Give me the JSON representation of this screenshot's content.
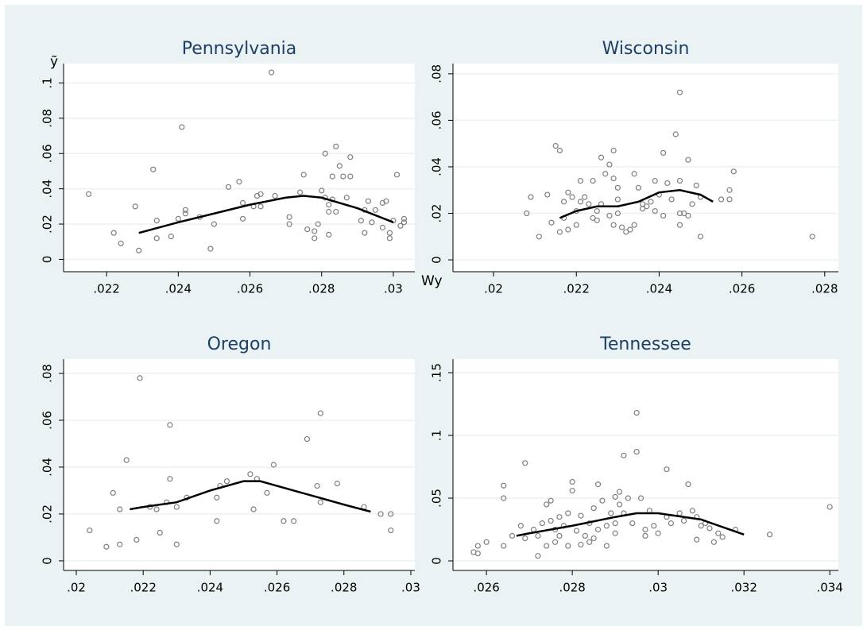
{
  "chart_data": [
    {
      "type": "scatter",
      "title": "Pennsylvania",
      "y_label": "ỹ",
      "x_label": "Wy",
      "xlim": [
        0.0208,
        0.0306
      ],
      "ylim": [
        -0.007,
        0.111
      ],
      "grid": true,
      "xticks": [
        {
          "value": 0.022,
          "label": ".022"
        },
        {
          "value": 0.024,
          "label": ".024"
        },
        {
          "value": 0.026,
          "label": ".026"
        },
        {
          "value": 0.028,
          "label": ".028"
        },
        {
          "value": 0.03,
          "label": ".03"
        }
      ],
      "yticks": [
        0,
        {
          "value": 0.02,
          "label": ".02"
        },
        {
          "value": 0.04,
          "label": ".04"
        },
        {
          "value": 0.06,
          "label": ".06"
        },
        {
          "value": 0.08,
          "label": ".08"
        },
        {
          "value": 0.1,
          "label": ".1"
        }
      ],
      "series": [
        {
          "type": "scatter",
          "color": "#7f7f7f",
          "x": [
            0.0215,
            0.0222,
            0.0224,
            0.0228,
            0.0229,
            0.0233,
            0.0234,
            0.0234,
            0.0238,
            0.024,
            0.0241,
            0.0242,
            0.0242,
            0.0246,
            0.0249,
            0.025,
            0.0254,
            0.0257,
            0.0258,
            0.0258,
            0.0261,
            0.0262,
            0.0263,
            0.0263,
            0.0266,
            0.0267,
            0.0271,
            0.0271,
            0.0274,
            0.0275,
            0.0276,
            0.0278,
            0.0278,
            0.0279,
            0.028,
            0.0281,
            0.0281,
            0.0282,
            0.0282,
            0.0282,
            0.0283,
            0.0283,
            0.0284,
            0.0284,
            0.0285,
            0.0286,
            0.0287,
            0.0288,
            0.0288,
            0.0291,
            0.0292,
            0.0293,
            0.0294,
            0.0297,
            0.0297,
            0.0298,
            0.0299,
            0.0299,
            0.03,
            0.0301,
            0.0302,
            0.0303,
            0.0303,
            0.0295,
            0.0292
          ],
          "values": [
            0.037,
            0.015,
            0.009,
            0.03,
            0.005,
            0.051,
            0.022,
            0.012,
            0.013,
            0.023,
            0.075,
            0.026,
            0.028,
            0.024,
            0.006,
            0.02,
            0.041,
            0.044,
            0.032,
            0.023,
            0.03,
            0.036,
            0.037,
            0.03,
            0.106,
            0.036,
            0.024,
            0.02,
            0.038,
            0.048,
            0.017,
            0.012,
            0.016,
            0.02,
            0.039,
            0.035,
            0.06,
            0.031,
            0.027,
            0.014,
            0.034,
            0.047,
            0.064,
            0.027,
            0.053,
            0.047,
            0.035,
            0.047,
            0.058,
            0.022,
            0.015,
            0.033,
            0.021,
            0.032,
            0.018,
            0.033,
            0.012,
            0.015,
            0.022,
            0.048,
            0.019,
            0.021,
            0.023,
            0.028,
            0.028
          ]
        },
        {
          "type": "line",
          "color": "#000000",
          "x": [
            0.0229,
            0.024,
            0.025,
            0.026,
            0.027,
            0.0275,
            0.028,
            0.029,
            0.03
          ],
          "values": [
            0.015,
            0.021,
            0.026,
            0.031,
            0.035,
            0.036,
            0.035,
            0.029,
            0.021
          ]
        }
      ]
    },
    {
      "type": "scatter",
      "title": "Wisconsin",
      "xlim": [
        0.01902,
        0.02833
      ],
      "ylim": [
        -0.0051,
        0.0844
      ],
      "grid": true,
      "xticks": [
        {
          "value": 0.02,
          "label": ".02"
        },
        {
          "value": 0.022,
          "label": ".022"
        },
        {
          "value": 0.024,
          "label": ".024"
        },
        {
          "value": 0.026,
          "label": ".026"
        },
        {
          "value": 0.028,
          "label": ".028"
        }
      ],
      "yticks": [
        0,
        {
          "value": 0.02,
          "label": ".02"
        },
        {
          "value": 0.04,
          "label": ".04"
        },
        {
          "value": 0.06,
          "label": ".06"
        },
        {
          "value": 0.08,
          "label": ".08"
        }
      ],
      "series": [
        {
          "type": "scatter",
          "color": "#7f7f7f",
          "x": [
            0.0208,
            0.0209,
            0.0211,
            0.0213,
            0.0214,
            0.0215,
            0.0216,
            0.0216,
            0.0217,
            0.0217,
            0.0218,
            0.0218,
            0.0219,
            0.022,
            0.022,
            0.0221,
            0.0221,
            0.0222,
            0.0223,
            0.0224,
            0.0224,
            0.0225,
            0.0225,
            0.0226,
            0.0226,
            0.0227,
            0.0228,
            0.0228,
            0.0229,
            0.0229,
            0.0229,
            0.023,
            0.023,
            0.023,
            0.0231,
            0.0232,
            0.0233,
            0.0234,
            0.0234,
            0.0235,
            0.0236,
            0.0236,
            0.0237,
            0.0238,
            0.0239,
            0.0239,
            0.024,
            0.0241,
            0.0241,
            0.0242,
            0.0243,
            0.0244,
            0.0245,
            0.0245,
            0.0245,
            0.0245,
            0.0246,
            0.0247,
            0.0247,
            0.0248,
            0.0249,
            0.025,
            0.025,
            0.0255,
            0.0257,
            0.0257,
            0.0258,
            0.0277
          ],
          "values": [
            0.02,
            0.027,
            0.01,
            0.028,
            0.016,
            0.049,
            0.012,
            0.047,
            0.025,
            0.018,
            0.013,
            0.029,
            0.027,
            0.015,
            0.021,
            0.025,
            0.034,
            0.027,
            0.024,
            0.034,
            0.018,
            0.021,
            0.017,
            0.044,
            0.024,
            0.037,
            0.019,
            0.041,
            0.047,
            0.035,
            0.015,
            0.02,
            0.026,
            0.031,
            0.014,
            0.012,
            0.013,
            0.037,
            0.015,
            0.031,
            0.024,
            0.022,
            0.023,
            0.025,
            0.034,
            0.021,
            0.028,
            0.046,
            0.019,
            0.033,
            0.026,
            0.054,
            0.072,
            0.034,
            0.02,
            0.015,
            0.02,
            0.043,
            0.019,
            0.024,
            0.032,
            0.027,
            0.01,
            0.026,
            0.03,
            0.026,
            0.038,
            0.01
          ]
        },
        {
          "type": "line",
          "color": "#000000",
          "x": [
            0.0216,
            0.022,
            0.0225,
            0.023,
            0.0235,
            0.024,
            0.0245,
            0.025,
            0.0253
          ],
          "values": [
            0.018,
            0.021,
            0.023,
            0.023,
            0.025,
            0.029,
            0.03,
            0.028,
            0.025
          ]
        }
      ]
    },
    {
      "type": "scatter",
      "title": "Oregon",
      "xlim": [
        0.01962,
        0.03012
      ],
      "ylim": [
        -0.0041,
        0.0861
      ],
      "grid": true,
      "xticks": [
        {
          "value": 0.02,
          "label": ".02"
        },
        {
          "value": 0.022,
          "label": ".022"
        },
        {
          "value": 0.024,
          "label": ".024"
        },
        {
          "value": 0.026,
          "label": ".026"
        },
        {
          "value": 0.028,
          "label": ".028"
        },
        {
          "value": 0.03,
          "label": ".03"
        }
      ],
      "yticks": [
        0,
        {
          "value": 0.02,
          "label": ".02"
        },
        {
          "value": 0.04,
          "label": ".04"
        },
        {
          "value": 0.06,
          "label": ".06"
        },
        {
          "value": 0.08,
          "label": ".08"
        }
      ],
      "series": [
        {
          "type": "scatter",
          "color": "#7f7f7f",
          "x": [
            0.0204,
            0.0209,
            0.0211,
            0.0213,
            0.0213,
            0.0215,
            0.0218,
            0.0219,
            0.0222,
            0.0224,
            0.0225,
            0.0227,
            0.0228,
            0.0228,
            0.023,
            0.023,
            0.0233,
            0.0242,
            0.0242,
            0.0243,
            0.0245,
            0.0252,
            0.0253,
            0.0254,
            0.0257,
            0.0259,
            0.0262,
            0.0265,
            0.0269,
            0.0272,
            0.0273,
            0.0273,
            0.0278,
            0.0286,
            0.0291,
            0.0294,
            0.0294
          ],
          "values": [
            0.013,
            0.006,
            0.029,
            0.007,
            0.022,
            0.043,
            0.009,
            0.078,
            0.023,
            0.022,
            0.012,
            0.025,
            0.035,
            0.058,
            0.007,
            0.023,
            0.027,
            0.017,
            0.027,
            0.032,
            0.034,
            0.037,
            0.022,
            0.035,
            0.029,
            0.041,
            0.017,
            0.017,
            0.052,
            0.032,
            0.063,
            0.025,
            0.033,
            0.023,
            0.02,
            0.02,
            0.013
          ]
        },
        {
          "type": "line",
          "color": "#000000",
          "x": [
            0.0216,
            0.022,
            0.023,
            0.024,
            0.025,
            0.0255,
            0.026,
            0.027,
            0.028,
            0.0288
          ],
          "values": [
            0.022,
            0.023,
            0.025,
            0.03,
            0.034,
            0.034,
            0.032,
            0.028,
            0.024,
            0.021
          ]
        }
      ]
    },
    {
      "type": "scatter",
      "title": "Tennessee",
      "xlim": [
        0.02522,
        0.0342
      ],
      "ylim": [
        -0.0076,
        0.1608
      ],
      "grid": true,
      "xticks": [
        {
          "value": 0.026,
          "label": ".026"
        },
        {
          "value": 0.028,
          "label": ".028"
        },
        {
          "value": 0.03,
          "label": ".03"
        },
        {
          "value": 0.032,
          "label": ".032"
        },
        {
          "value": 0.034,
          "label": ".034"
        }
      ],
      "yticks": [
        0,
        {
          "value": 0.05,
          "label": ".05"
        },
        {
          "value": 0.1,
          "label": ".1"
        },
        {
          "value": 0.15,
          "label": ".15"
        }
      ],
      "series": [
        {
          "type": "scatter",
          "color": "#7f7f7f",
          "x": [
            0.0257,
            0.0258,
            0.0258,
            0.026,
            0.0264,
            0.0264,
            0.0264,
            0.0266,
            0.0268,
            0.0269,
            0.0269,
            0.0271,
            0.0272,
            0.0272,
            0.0273,
            0.0274,
            0.0274,
            0.0275,
            0.0275,
            0.0276,
            0.0276,
            0.0277,
            0.0277,
            0.0278,
            0.0279,
            0.0279,
            0.028,
            0.028,
            0.0281,
            0.0282,
            0.0282,
            0.0283,
            0.0284,
            0.0284,
            0.0285,
            0.0285,
            0.0286,
            0.0286,
            0.0287,
            0.0288,
            0.0288,
            0.0289,
            0.029,
            0.029,
            0.029,
            0.0291,
            0.0291,
            0.0292,
            0.0292,
            0.0293,
            0.0294,
            0.0295,
            0.0295,
            0.0296,
            0.0297,
            0.0297,
            0.0298,
            0.0299,
            0.03,
            0.0302,
            0.0302,
            0.0303,
            0.0305,
            0.0306,
            0.0307,
            0.0308,
            0.0309,
            0.0309,
            0.031,
            0.0311,
            0.0312,
            0.0313,
            0.0314,
            0.0315,
            0.0318,
            0.0326,
            0.034
          ],
          "values": [
            0.007,
            0.012,
            0.006,
            0.015,
            0.012,
            0.06,
            0.05,
            0.02,
            0.028,
            0.018,
            0.078,
            0.025,
            0.004,
            0.02,
            0.03,
            0.045,
            0.012,
            0.048,
            0.032,
            0.025,
            0.015,
            0.035,
            0.02,
            0.028,
            0.038,
            0.012,
            0.056,
            0.063,
            0.024,
            0.036,
            0.013,
            0.02,
            0.015,
            0.03,
            0.042,
            0.018,
            0.061,
            0.025,
            0.048,
            0.028,
            0.012,
            0.038,
            0.051,
            0.022,
            0.03,
            0.055,
            0.045,
            0.038,
            0.084,
            0.05,
            0.03,
            0.118,
            0.087,
            0.05,
            0.025,
            0.02,
            0.04,
            0.028,
            0.022,
            0.073,
            0.035,
            0.03,
            0.038,
            0.032,
            0.061,
            0.04,
            0.017,
            0.035,
            0.028,
            0.03,
            0.026,
            0.015,
            0.022,
            0.019,
            0.025,
            0.021,
            0.043
          ]
        },
        {
          "type": "line",
          "color": "#000000",
          "x": [
            0.0267,
            0.027,
            0.028,
            0.029,
            0.0295,
            0.03,
            0.031,
            0.032
          ],
          "values": [
            0.02,
            0.022,
            0.028,
            0.035,
            0.038,
            0.038,
            0.033,
            0.021
          ]
        }
      ]
    }
  ]
}
